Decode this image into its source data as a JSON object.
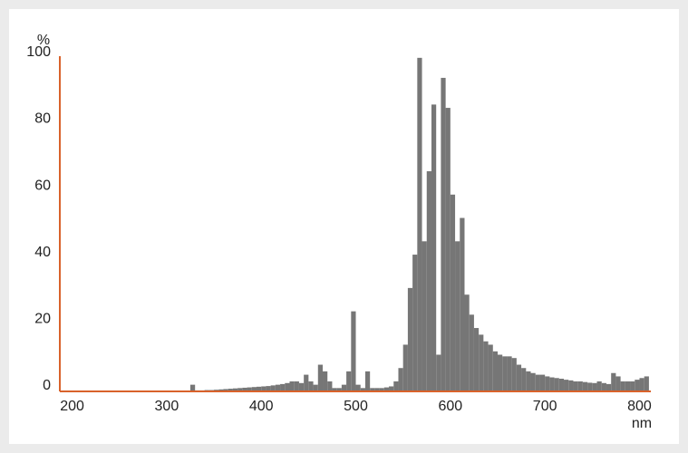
{
  "chart_data": {
    "type": "histogram",
    "y_label": "%",
    "x_label": "nm",
    "bins": [
      325,
      330,
      335,
      340,
      345,
      350,
      355,
      360,
      365,
      370,
      375,
      380,
      385,
      390,
      395,
      400,
      405,
      410,
      415,
      420,
      425,
      430,
      435,
      440,
      445,
      450,
      455,
      460,
      465,
      470,
      475,
      480,
      485,
      490,
      495,
      500,
      505,
      510,
      515,
      520,
      525,
      530,
      535,
      540,
      545,
      550,
      555,
      560,
      565,
      570,
      575,
      580,
      585,
      590,
      595,
      600,
      605,
      610,
      615,
      620,
      625,
      630,
      635,
      640,
      645,
      650,
      655,
      660,
      665,
      670,
      675,
      680,
      685,
      690,
      695,
      700,
      705,
      710,
      715,
      720,
      725,
      730,
      735,
      740,
      745,
      750,
      755,
      760,
      765,
      770,
      775,
      780,
      785,
      790,
      795,
      800,
      805,
      810
    ],
    "values": [
      2,
      0.3,
      0.3,
      0.4,
      0.4,
      0.5,
      0.6,
      0.7,
      0.8,
      0.9,
      1,
      1.1,
      1.2,
      1.3,
      1.4,
      1.5,
      1.6,
      1.8,
      2,
      2.2,
      2.5,
      3,
      3,
      2.5,
      5,
      3,
      2,
      8,
      6,
      3,
      1,
      1,
      2,
      6,
      24,
      2,
      1,
      6,
      1,
      1,
      1,
      1.2,
      1.5,
      3,
      7,
      14,
      31,
      41,
      100,
      45,
      66,
      86,
      11,
      94,
      85,
      59,
      45,
      52,
      29,
      23,
      19,
      17,
      15,
      14,
      12,
      11,
      10.5,
      10.5,
      10,
      8,
      7,
      6,
      5.5,
      5,
      5,
      4.5,
      4.2,
      4,
      3.8,
      3.5,
      3.3,
      3,
      3,
      2.8,
      2.6,
      2.5,
      3,
      2.5,
      2.2,
      5.5,
      4.5,
      3,
      3,
      3,
      3.5,
      4,
      4.5
    ],
    "color": "#767676",
    "axis_color": "#d9622b",
    "xlim": [
      187,
      812
    ],
    "xticks": [
      200,
      300,
      400,
      500,
      600,
      700,
      800
    ],
    "ylim": [
      0,
      100.5
    ],
    "yticks": [
      0,
      20,
      40,
      60,
      80,
      100
    ],
    "grid": false
  }
}
